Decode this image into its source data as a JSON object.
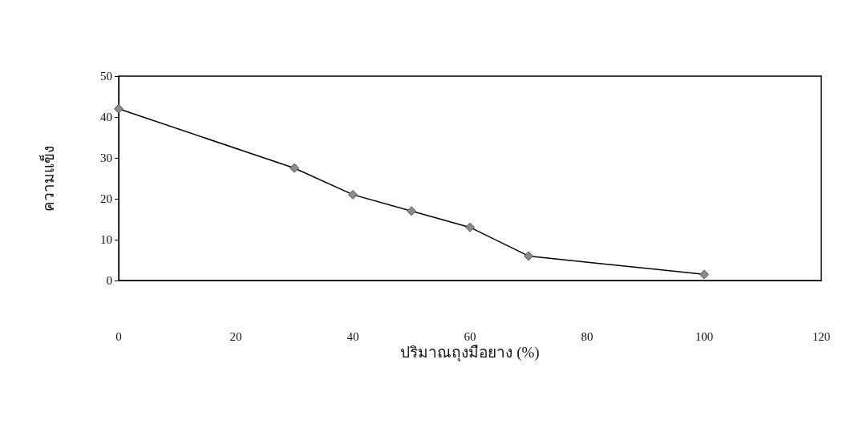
{
  "chart_data": {
    "type": "line",
    "xlabel": "ปริมาณถุงมือยาง (%)",
    "ylabel": "ความแข็ง",
    "x": [
      0,
      30,
      40,
      50,
      60,
      70,
      100
    ],
    "series": [
      {
        "color": "#000000",
        "values": [
          42,
          27.5,
          21,
          17,
          13,
          6,
          1.5
        ]
      }
    ],
    "xlim": [
      0,
      120
    ],
    "xticks": [
      0,
      20,
      40,
      60,
      80,
      100,
      120
    ],
    "ylim": [
      0,
      50
    ],
    "yticks": [
      0,
      10,
      20,
      30,
      40,
      50
    ],
    "grid": false,
    "marker": "diamond",
    "line_style": "solid"
  }
}
